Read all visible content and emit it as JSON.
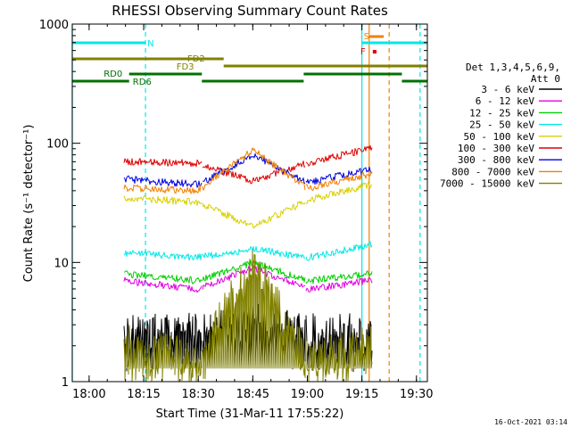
{
  "chart_data": {
    "type": "line",
    "title": "RHESSI Observing Summary Count Rates",
    "xlabel": "Start Time (31-Mar-11 17:55:22)",
    "ylabel": "Count Rate (s⁻¹ detector⁻¹)",
    "y_scale": "log",
    "ylim": [
      1,
      1000
    ],
    "xlim": [
      "17:55:22",
      "19:33:00"
    ],
    "x_tick_labels": [
      "18:00",
      "18:15",
      "18:30",
      "18:45",
      "19:00",
      "19:15",
      "19:30"
    ],
    "y_tick_labels": [
      "1",
      "10",
      "100",
      "1000"
    ],
    "timestamp": "16-Oct-2021 03:14",
    "legend": {
      "placement": "right",
      "header": [
        "Det 1,3,4,5,6,9,",
        "Att 0"
      ],
      "entries": [
        {
          "label": "3 - 6 keV",
          "color": "#000000"
        },
        {
          "label": "6 - 12 keV",
          "color": "#e000e0"
        },
        {
          "label": "12 - 25 keV",
          "color": "#00d000"
        },
        {
          "label": "25 - 50 keV",
          "color": "#00e8e8"
        },
        {
          "label": "50 - 100 keV",
          "color": "#d8d000"
        },
        {
          "label": "100 - 300 keV",
          "color": "#e00000"
        },
        {
          "label": "300 - 800 keV",
          "color": "#0000e0"
        },
        {
          "label": "800 - 7000 keV",
          "color": "#f08000"
        },
        {
          "label": "7000 - 15000 keV",
          "color": "#808000"
        }
      ]
    },
    "segments": [
      {
        "start": "18:09:30",
        "end": "18:31:00"
      },
      {
        "start": "18:31:00",
        "end": "18:59:30"
      },
      {
        "start": "18:59:30",
        "end": "19:18:00"
      }
    ],
    "series": [
      {
        "name": "3 - 6 keV",
        "color": "#000000",
        "x": [
          "18:10",
          "18:30",
          "18:45",
          "19:00",
          "19:17"
        ],
        "values": [
          2.5,
          2.5,
          3.0,
          2.5,
          2.5
        ]
      },
      {
        "name": "6 - 12 keV",
        "color": "#e000e0",
        "x": [
          "18:10",
          "18:30",
          "18:45",
          "19:00",
          "19:17"
        ],
        "values": [
          7,
          6,
          9,
          6,
          7
        ]
      },
      {
        "name": "12 - 25 keV",
        "color": "#00d000",
        "x": [
          "18:10",
          "18:30",
          "18:45",
          "19:00",
          "19:17"
        ],
        "values": [
          8,
          7,
          10,
          7,
          8
        ]
      },
      {
        "name": "25 - 50 keV",
        "color": "#00e8e8",
        "x": [
          "18:10",
          "18:30",
          "18:45",
          "19:00",
          "19:17"
        ],
        "values": [
          12,
          11,
          13,
          11,
          14
        ]
      },
      {
        "name": "50 - 100 keV",
        "color": "#d8d000",
        "x": [
          "18:10",
          "18:30",
          "18:45",
          "19:00",
          "19:17"
        ],
        "values": [
          35,
          32,
          20,
          33,
          45
        ]
      },
      {
        "name": "100 - 300 keV",
        "color": "#e00000",
        "x": [
          "18:10",
          "18:30",
          "18:45",
          "19:00",
          "19:17"
        ],
        "values": [
          70,
          68,
          48,
          68,
          90
        ]
      },
      {
        "name": "300 - 800 keV",
        "color": "#0000e0",
        "x": [
          "18:10",
          "18:30",
          "18:45",
          "19:00",
          "19:17"
        ],
        "values": [
          50,
          45,
          80,
          47,
          60
        ]
      },
      {
        "name": "800 - 7000 keV",
        "color": "#f08000",
        "x": [
          "18:10",
          "18:30",
          "18:45",
          "19:00",
          "19:17"
        ],
        "values": [
          42,
          40,
          88,
          42,
          55
        ]
      },
      {
        "name": "7000 - 15000 keV",
        "color": "#808000",
        "x": [
          "18:10",
          "18:30",
          "18:45",
          "19:00",
          "19:17"
        ],
        "values": [
          2,
          1.5,
          10,
          1.5,
          2
        ]
      }
    ],
    "annotations": {
      "flags": [
        {
          "label": "N",
          "color": "#00e8e8"
        },
        {
          "label": "S",
          "color": "#f08000"
        },
        {
          "label": "F",
          "color": "#e00000"
        },
        {
          "label": "FD2",
          "color": "#808000"
        },
        {
          "label": "FD3",
          "color": "#808000"
        },
        {
          "label": "RD0",
          "color": "#007000"
        },
        {
          "label": "RD6",
          "color": "#007000"
        }
      ],
      "bars": [
        {
          "label": "N",
          "color": "#00e8e8",
          "start": "17:55:22",
          "end": "18:15:30"
        },
        {
          "label": "N",
          "color": "#00e8e8",
          "start": "19:15:00",
          "end": "19:33:00"
        },
        {
          "label": "S",
          "color": "#f08000",
          "start": "19:17:00",
          "end": "19:21:00"
        },
        {
          "label": "F",
          "color": "#e00000",
          "start": "19:18:00",
          "end": "19:19:00"
        },
        {
          "label": "FD2",
          "color": "#808000",
          "start": "17:55:22",
          "end": "18:37:00"
        },
        {
          "label": "FD3",
          "color": "#808000",
          "start": "18:37:00",
          "end": "19:33:00"
        },
        {
          "label": "RD0",
          "color": "#007000",
          "start": "18:11:00",
          "end": "18:31:00"
        },
        {
          "label": "RD0",
          "color": "#007000",
          "start": "18:59:00",
          "end": "19:26:00"
        },
        {
          "label": "RD6",
          "color": "#007000",
          "start": "17:55:22",
          "end": "18:11:00"
        },
        {
          "label": "RD6",
          "color": "#007000",
          "start": "18:31:00",
          "end": "18:59:00"
        },
        {
          "label": "RD6",
          "color": "#007000",
          "start": "19:26:00",
          "end": "19:33:00"
        }
      ],
      "vlines": [
        {
          "t": "17:55:22",
          "color": "#00e8e8",
          "dashed": false
        },
        {
          "t": "18:15:30",
          "color": "#00e8e8",
          "dashed": true
        },
        {
          "t": "19:15:00",
          "color": "#00e8e8",
          "dashed": false
        },
        {
          "t": "19:31:00",
          "color": "#00e8e8",
          "dashed": true
        },
        {
          "t": "19:17:00",
          "color": "#f08000",
          "dashed": false
        },
        {
          "t": "19:22:30",
          "color": "#f08000",
          "dashed": true
        }
      ]
    }
  }
}
